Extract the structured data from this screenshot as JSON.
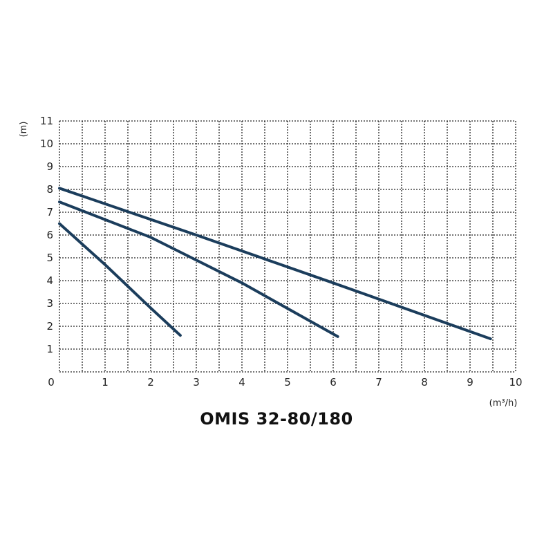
{
  "chart_data": {
    "type": "line",
    "title": "OMIS 32-80/180",
    "xlabel": "(m³/h)",
    "ylabel": "(m)",
    "xlim": [
      0,
      10
    ],
    "ylim": [
      0,
      11
    ],
    "x_ticks": [
      "0",
      "1",
      "2",
      "3",
      "4",
      "5",
      "6",
      "7",
      "8",
      "9",
      "10"
    ],
    "y_ticks": [
      "1",
      "2",
      "3",
      "4",
      "5",
      "6",
      "7",
      "8",
      "9",
      "10",
      "11"
    ],
    "grid": true,
    "series": [
      {
        "points": [
          [
            0,
            6.5
          ],
          [
            1,
            4.7
          ],
          [
            2,
            2.8
          ],
          [
            2.65,
            1.6
          ]
        ]
      },
      {
        "points": [
          [
            0,
            7.45
          ],
          [
            2,
            5.9
          ],
          [
            4,
            3.9
          ],
          [
            6.1,
            1.55
          ]
        ]
      },
      {
        "points": [
          [
            0,
            8.05
          ],
          [
            3,
            6.0
          ],
          [
            6,
            3.9
          ],
          [
            9.45,
            1.45
          ]
        ]
      }
    ]
  },
  "colors": {
    "curve": "#1b3d5c",
    "grid": "#222222"
  }
}
